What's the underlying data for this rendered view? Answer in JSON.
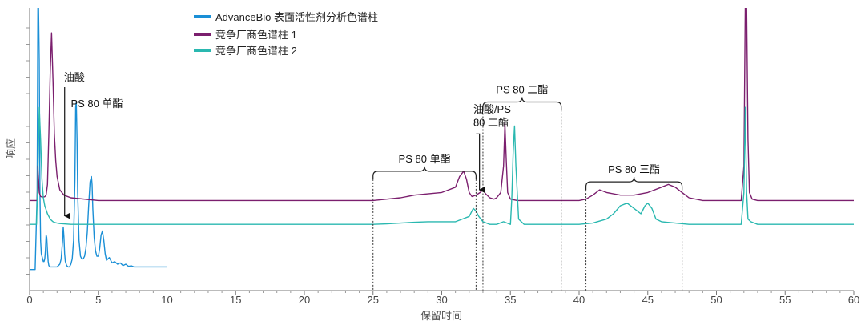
{
  "chart_data": {
    "type": "line",
    "xlabel": "保留时间",
    "ylabel": "响应",
    "xlim": [
      0,
      60
    ],
    "xticks": [
      0,
      5,
      10,
      15,
      20,
      25,
      30,
      35,
      40,
      45,
      50,
      55,
      60
    ],
    "legend_position": "top-left",
    "legend": [
      {
        "label": "AdvanceBio 表面活性剂分析色谱柱",
        "color": "#1a8fd6"
      },
      {
        "label": "竞争厂商色谱柱 1",
        "color": "#7b1f6e"
      },
      {
        "label": "竞争厂商色谱柱 2",
        "color": "#2ab8b0"
      }
    ],
    "series": [
      {
        "name": "AdvanceBio 表面活性剂分析色谱柱",
        "color": "#1a8fd6",
        "x": [
          0.0,
          0.4,
          0.55,
          0.6,
          0.65,
          0.7,
          0.75,
          0.8,
          0.85,
          0.9,
          0.95,
          1.0,
          1.05,
          1.1,
          1.15,
          1.2,
          1.25,
          1.3,
          1.35,
          1.4,
          1.5,
          1.6,
          1.7,
          1.8,
          1.9,
          2.0,
          2.1,
          2.2,
          2.3,
          2.4,
          2.45,
          2.5,
          2.55,
          2.6,
          2.7,
          2.8,
          2.9,
          3.0,
          3.1,
          3.2,
          3.3,
          3.35,
          3.4,
          3.45,
          3.5,
          3.6,
          3.7,
          3.8,
          3.9,
          4.0,
          4.1,
          4.2,
          4.3,
          4.4,
          4.5,
          4.55,
          4.6,
          4.7,
          4.8,
          4.9,
          5.0,
          5.1,
          5.2,
          5.3,
          5.4,
          5.5,
          5.6,
          5.8,
          6.0,
          6.2,
          6.4,
          6.6,
          6.8,
          7.0,
          7.2,
          7.4,
          7.6,
          7.8,
          8.0,
          8.5,
          9.0,
          9.5,
          10.0
        ],
        "y": [
          0.01,
          0.01,
          0.3,
          1.0,
          1.0,
          0.8,
          0.3,
          0.12,
          0.07,
          0.06,
          0.05,
          0.04,
          0.04,
          0.05,
          0.08,
          0.14,
          0.13,
          0.08,
          0.04,
          0.025,
          0.02,
          0.02,
          0.02,
          0.02,
          0.02,
          0.02,
          0.025,
          0.03,
          0.05,
          0.12,
          0.17,
          0.13,
          0.07,
          0.04,
          0.025,
          0.02,
          0.02,
          0.03,
          0.05,
          0.12,
          0.35,
          0.62,
          0.64,
          0.5,
          0.3,
          0.12,
          0.06,
          0.05,
          0.05,
          0.06,
          0.09,
          0.15,
          0.25,
          0.34,
          0.36,
          0.33,
          0.24,
          0.13,
          0.08,
          0.06,
          0.06,
          0.09,
          0.14,
          0.155,
          0.12,
          0.07,
          0.045,
          0.055,
          0.035,
          0.04,
          0.03,
          0.035,
          0.025,
          0.03,
          0.022,
          0.024,
          0.02,
          0.02,
          0.02,
          0.02,
          0.02,
          0.02,
          0.02
        ]
      },
      {
        "name": "竞争厂商色谱柱 1",
        "color": "#7b1f6e",
        "x": [
          0.0,
          0.55,
          0.6,
          0.7,
          0.8,
          0.9,
          1.0,
          1.1,
          1.2,
          1.3,
          1.4,
          1.5,
          1.6,
          1.7,
          1.8,
          1.9,
          2.0,
          2.2,
          2.5,
          3.0,
          5.0,
          10.0,
          20.0,
          25.0,
          26.0,
          27.0,
          28.0,
          29.0,
          30.0,
          30.5,
          31.0,
          31.3,
          31.6,
          31.8,
          32.0,
          32.2,
          32.5,
          32.8,
          33.0,
          33.2,
          33.5,
          33.8,
          34.0,
          34.3,
          34.5,
          34.6,
          34.7,
          34.8,
          35.0,
          35.5,
          36.0,
          37.0,
          38.0,
          39.0,
          40.0,
          40.5,
          41.0,
          41.5,
          42.0,
          43.0,
          44.0,
          45.0,
          46.0,
          46.5,
          47.0,
          47.5,
          48.0,
          49.0,
          50.0,
          51.0,
          51.8,
          52.0,
          52.1,
          52.2,
          52.3,
          52.4,
          52.6,
          53.0,
          55.0,
          60.0
        ],
        "y": [
          0.27,
          0.27,
          0.4,
          0.3,
          0.285,
          0.283,
          0.283,
          0.284,
          0.29,
          0.33,
          0.52,
          0.75,
          0.9,
          0.72,
          0.52,
          0.42,
          0.36,
          0.31,
          0.29,
          0.28,
          0.27,
          0.27,
          0.27,
          0.27,
          0.275,
          0.28,
          0.29,
          0.295,
          0.3,
          0.31,
          0.32,
          0.36,
          0.38,
          0.35,
          0.3,
          0.285,
          0.29,
          0.3,
          0.31,
          0.295,
          0.28,
          0.275,
          0.28,
          0.3,
          0.4,
          0.56,
          0.42,
          0.3,
          0.275,
          0.27,
          0.27,
          0.27,
          0.27,
          0.27,
          0.27,
          0.275,
          0.29,
          0.31,
          0.3,
          0.29,
          0.29,
          0.3,
          0.32,
          0.33,
          0.32,
          0.3,
          0.28,
          0.27,
          0.27,
          0.27,
          0.27,
          0.4,
          1.0,
          1.0,
          0.5,
          0.3,
          0.275,
          0.27,
          0.27,
          0.27
        ]
      },
      {
        "name": "竞争厂商色谱柱 2",
        "color": "#2ab8b0",
        "x": [
          0.0,
          0.5,
          0.6,
          0.7,
          0.8,
          0.9,
          1.0,
          1.1,
          1.2,
          1.3,
          1.4,
          1.5,
          1.6,
          1.7,
          1.8,
          1.9,
          2.0,
          2.2,
          2.5,
          3.0,
          5.0,
          10.0,
          20.0,
          25.0,
          26.0,
          27.0,
          28.0,
          29.0,
          30.0,
          31.0,
          31.5,
          32.0,
          32.3,
          32.5,
          32.7,
          33.0,
          33.5,
          34.0,
          34.5,
          35.0,
          35.1,
          35.2,
          35.3,
          35.4,
          35.6,
          36.0,
          37.0,
          38.0,
          39.0,
          40.0,
          41.0,
          42.0,
          42.5,
          43.0,
          43.5,
          44.0,
          44.5,
          44.8,
          45.0,
          45.3,
          45.6,
          46.0,
          47.0,
          48.0,
          49.0,
          50.0,
          51.0,
          51.8,
          52.0,
          52.1,
          52.2,
          52.3,
          52.5,
          53.0,
          55.0,
          60.0
        ],
        "y": [
          0.18,
          0.18,
          0.35,
          0.62,
          0.5,
          0.35,
          0.28,
          0.25,
          0.235,
          0.22,
          0.21,
          0.2,
          0.195,
          0.19,
          0.188,
          0.186,
          0.185,
          0.183,
          0.182,
          0.18,
          0.18,
          0.18,
          0.18,
          0.18,
          0.182,
          0.185,
          0.188,
          0.19,
          0.19,
          0.19,
          0.2,
          0.21,
          0.24,
          0.23,
          0.21,
          0.19,
          0.18,
          0.18,
          0.19,
          0.18,
          0.28,
          0.45,
          0.55,
          0.4,
          0.2,
          0.18,
          0.18,
          0.18,
          0.18,
          0.18,
          0.185,
          0.2,
          0.22,
          0.25,
          0.26,
          0.24,
          0.22,
          0.25,
          0.26,
          0.24,
          0.2,
          0.19,
          0.185,
          0.18,
          0.18,
          0.18,
          0.18,
          0.18,
          0.3,
          0.62,
          0.3,
          0.2,
          0.19,
          0.18,
          0.18,
          0.18
        ]
      }
    ],
    "annotations": [
      {
        "text": "油酸",
        "kind": "arrow",
        "arrow_to": {
          "x": 2.55,
          "y": 0.2
        },
        "label_at": {
          "x": 2.5,
          "y": 0.72
        }
      },
      {
        "text": "PS 80 单酯",
        "kind": "label",
        "label_at": {
          "x": 3.0,
          "y": 0.62
        }
      },
      {
        "text": "PS 80 单酯",
        "kind": "bracket",
        "x_start": 25.0,
        "x_end": 32.5,
        "y": 0.38
      },
      {
        "text": "油酸/PS",
        "kind": "label",
        "label_at": {
          "x": 32.3,
          "y": 0.6
        }
      },
      {
        "text": "80 二酯",
        "kind": "label",
        "label_at": {
          "x": 32.3,
          "y": 0.55
        }
      },
      {
        "text": "PS 80 二酯",
        "kind": "bracket",
        "x_start": 33.0,
        "x_end": 38.7,
        "y": 0.64
      },
      {
        "text": "PS 80 三酯",
        "kind": "bracket",
        "x_start": 40.5,
        "x_end": 47.5,
        "y": 0.34
      }
    ]
  }
}
